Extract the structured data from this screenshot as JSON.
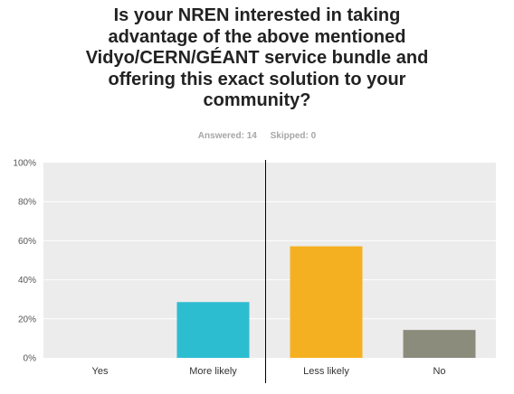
{
  "question": {
    "title_lines": [
      "Is your NREN interested in taking",
      "advantage of the above mentioned",
      "Vidyo/CERN/GÉANT service bundle and",
      "offering this exact solution to your",
      "community?"
    ],
    "answered": "Answered: 14",
    "skipped": "Skipped: 0"
  },
  "chart_data": {
    "type": "bar",
    "categories": [
      "Yes",
      "More likely",
      "Less likely",
      "No"
    ],
    "values": [
      0,
      28.57,
      57.14,
      14.29
    ],
    "value_unit": "%",
    "ylim": [
      0,
      100
    ],
    "yticks": [
      "0%",
      "20%",
      "40%",
      "60%",
      "80%",
      "100%"
    ],
    "colors": [
      "#2dbdd0",
      "#2dbdd0",
      "#f5b021",
      "#8c8c7c"
    ],
    "grid": true,
    "legend": "none",
    "xlabel": "",
    "ylabel": ""
  },
  "style": {
    "plot_background": "#ececec",
    "gridline_color": "#ffffff",
    "divider_color": "#000000"
  }
}
